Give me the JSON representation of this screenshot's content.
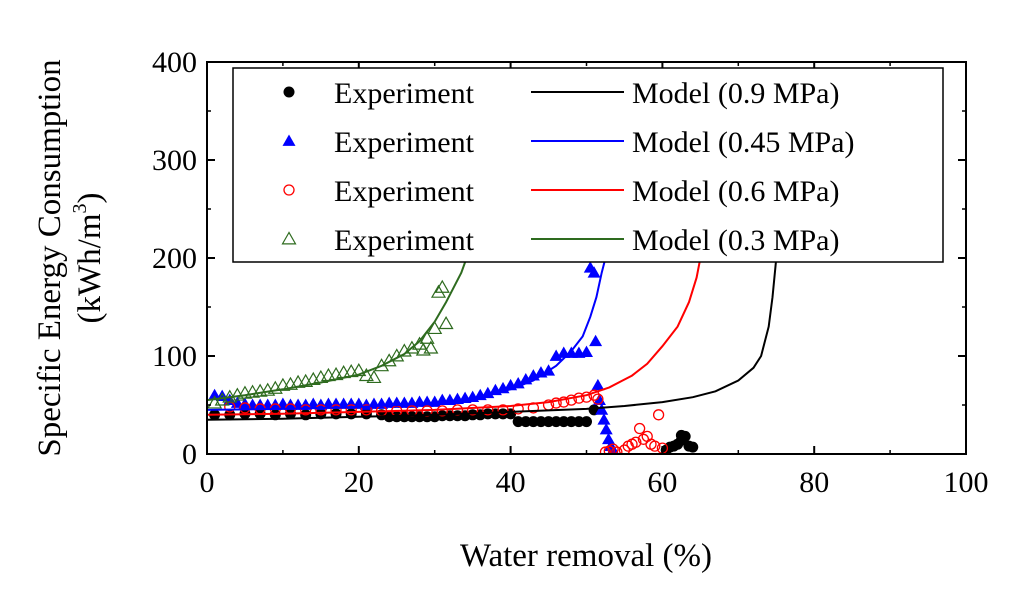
{
  "chart_data": {
    "type": "scatter",
    "xlabel": "Water removal (%)",
    "ylabel_line1": "Specific Energy Consumption",
    "ylabel_line2_base": "(kWh/m",
    "ylabel_line2_sup": "3",
    "ylabel_line2_close": ")",
    "xlim": [
      0,
      100
    ],
    "ylim": [
      0,
      400
    ],
    "xticks": [
      "0",
      "20",
      "40",
      "60",
      "80",
      "100"
    ],
    "yticks": [
      "0",
      "100",
      "200",
      "300",
      "400"
    ],
    "grid": false,
    "legend_position": "top-right",
    "colors": {
      "p09": "#000000",
      "p045": "#0000ff",
      "p06": "#ff0000",
      "p03": "#2e6b1f"
    },
    "series": [
      {
        "experiment_label": "Experiment",
        "model_label": "Model (0.9 MPa)",
        "marker": "filled-circle",
        "color_key": "p09",
        "experiment": [
          [
            1,
            40
          ],
          [
            3,
            40
          ],
          [
            5,
            41
          ],
          [
            7,
            41
          ],
          [
            9,
            40
          ],
          [
            11,
            41
          ],
          [
            13,
            40
          ],
          [
            15,
            41
          ],
          [
            17,
            41
          ],
          [
            19,
            41
          ],
          [
            21,
            41
          ],
          [
            23,
            40
          ],
          [
            24,
            38
          ],
          [
            25,
            38
          ],
          [
            26,
            38
          ],
          [
            27,
            38
          ],
          [
            28,
            38
          ],
          [
            29,
            38
          ],
          [
            30,
            38
          ],
          [
            31,
            39
          ],
          [
            32,
            39
          ],
          [
            33,
            39
          ],
          [
            34,
            39
          ],
          [
            35,
            40
          ],
          [
            36,
            40
          ],
          [
            37,
            41
          ],
          [
            38,
            41
          ],
          [
            39,
            41
          ],
          [
            40,
            41
          ],
          [
            41,
            33
          ],
          [
            42,
            33
          ],
          [
            43,
            33
          ],
          [
            44,
            33
          ],
          [
            45,
            33
          ],
          [
            46,
            33
          ],
          [
            47,
            33
          ],
          [
            48,
            33
          ],
          [
            49,
            33
          ],
          [
            50,
            33
          ],
          [
            51,
            45
          ],
          [
            60.5,
            4
          ],
          [
            61,
            7
          ],
          [
            61.5,
            8
          ],
          [
            62,
            10
          ],
          [
            62.5,
            14
          ],
          [
            63,
            18
          ],
          [
            63.5,
            8
          ],
          [
            64,
            7
          ],
          [
            62.5,
            19
          ]
        ],
        "model": [
          [
            0,
            35
          ],
          [
            10,
            36
          ],
          [
            20,
            38
          ],
          [
            30,
            40
          ],
          [
            40,
            43
          ],
          [
            50,
            46
          ],
          [
            55,
            49
          ],
          [
            60,
            53
          ],
          [
            64,
            58
          ],
          [
            67,
            64
          ],
          [
            70,
            75
          ],
          [
            72,
            88
          ],
          [
            73,
            100
          ],
          [
            74,
            130
          ],
          [
            74.5,
            160
          ],
          [
            75,
            200
          ]
        ]
      },
      {
        "experiment_label": "Experiment",
        "model_label": "Model (0.45 MPa)",
        "marker": "filled-triangle",
        "color_key": "p045",
        "experiment": [
          [
            1,
            60
          ],
          [
            2,
            59
          ],
          [
            3,
            55
          ],
          [
            4,
            52
          ],
          [
            5,
            51
          ],
          [
            6,
            50
          ],
          [
            7,
            50
          ],
          [
            8,
            50
          ],
          [
            9,
            50
          ],
          [
            10,
            51
          ],
          [
            11,
            50
          ],
          [
            12,
            50
          ],
          [
            13,
            50
          ],
          [
            14,
            51
          ],
          [
            15,
            50
          ],
          [
            16,
            51
          ],
          [
            17,
            51
          ],
          [
            18,
            51
          ],
          [
            19,
            51
          ],
          [
            20,
            51
          ],
          [
            21,
            50
          ],
          [
            22,
            51
          ],
          [
            23,
            51
          ],
          [
            24,
            52
          ],
          [
            25,
            52
          ],
          [
            26,
            52
          ],
          [
            27,
            52
          ],
          [
            28,
            53
          ],
          [
            29,
            53
          ],
          [
            30,
            53
          ],
          [
            31,
            55
          ],
          [
            32,
            55
          ],
          [
            33,
            56
          ],
          [
            34,
            57
          ],
          [
            35,
            58
          ],
          [
            36,
            60
          ],
          [
            37,
            62
          ],
          [
            38,
            65
          ],
          [
            39,
            67
          ],
          [
            40,
            70
          ],
          [
            41,
            72
          ],
          [
            42,
            76
          ],
          [
            43,
            80
          ],
          [
            44,
            83
          ],
          [
            45,
            85
          ],
          [
            46,
            100
          ],
          [
            47,
            103
          ],
          [
            48,
            103
          ],
          [
            49,
            103
          ],
          [
            50,
            104
          ],
          [
            50.5,
            190
          ],
          [
            51,
            185
          ],
          [
            51.2,
            115
          ],
          [
            51.5,
            70
          ],
          [
            51.7,
            55
          ],
          [
            52,
            45
          ],
          [
            52.3,
            35
          ],
          [
            52.6,
            25
          ],
          [
            52.9,
            15
          ],
          [
            53.2,
            8
          ],
          [
            53.5,
            4
          ]
        ],
        "model": [
          [
            0,
            45
          ],
          [
            10,
            46
          ],
          [
            20,
            48
          ],
          [
            30,
            52
          ],
          [
            36,
            58
          ],
          [
            40,
            66
          ],
          [
            43,
            75
          ],
          [
            46,
            90
          ],
          [
            48,
            105
          ],
          [
            49.5,
            120
          ],
          [
            50.5,
            140
          ],
          [
            51.3,
            160
          ],
          [
            52,
            185
          ],
          [
            52.5,
            200
          ]
        ]
      },
      {
        "experiment_label": "Experiment",
        "model_label": "Model (0.6 MPa)",
        "marker": "open-circle",
        "color_key": "p06",
        "experiment": [
          [
            3,
            48
          ],
          [
            5,
            47
          ],
          [
            7,
            46
          ],
          [
            9,
            46
          ],
          [
            11,
            46
          ],
          [
            13,
            45
          ],
          [
            15,
            45
          ],
          [
            17,
            45
          ],
          [
            19,
            45
          ],
          [
            21,
            45
          ],
          [
            23,
            44
          ],
          [
            25,
            44
          ],
          [
            27,
            44
          ],
          [
            29,
            44
          ],
          [
            31,
            44
          ],
          [
            33,
            45
          ],
          [
            35,
            45
          ],
          [
            37,
            45
          ],
          [
            39,
            45
          ],
          [
            41,
            46
          ],
          [
            43,
            47
          ],
          [
            45,
            50
          ],
          [
            46,
            52
          ],
          [
            47,
            53
          ],
          [
            48,
            55
          ],
          [
            49,
            57
          ],
          [
            50,
            58
          ],
          [
            51,
            60
          ],
          [
            51.5,
            56
          ],
          [
            52.5,
            2
          ],
          [
            53,
            3
          ],
          [
            53.5,
            5
          ],
          [
            54,
            2
          ],
          [
            55,
            4
          ],
          [
            55.5,
            8
          ],
          [
            56,
            10
          ],
          [
            56.5,
            12
          ],
          [
            57,
            26
          ],
          [
            57.5,
            15
          ],
          [
            58,
            18
          ],
          [
            58.5,
            10
          ],
          [
            59,
            8
          ],
          [
            59.5,
            40
          ],
          [
            60,
            6
          ]
        ],
        "model": [
          [
            0,
            40
          ],
          [
            10,
            41
          ],
          [
            20,
            43
          ],
          [
            30,
            45
          ],
          [
            40,
            49
          ],
          [
            45,
            53
          ],
          [
            50,
            60
          ],
          [
            53,
            68
          ],
          [
            56,
            80
          ],
          [
            58,
            92
          ],
          [
            60,
            110
          ],
          [
            62,
            130
          ],
          [
            63.5,
            155
          ],
          [
            64.5,
            180
          ],
          [
            65,
            200
          ]
        ]
      },
      {
        "experiment_label": "Experiment",
        "model_label": "Model (0.3 MPa)",
        "marker": "open-triangle",
        "color_key": "p03",
        "experiment": [
          [
            1,
            52
          ],
          [
            2,
            55
          ],
          [
            3,
            58
          ],
          [
            4,
            60
          ],
          [
            5,
            62
          ],
          [
            6,
            63
          ],
          [
            7,
            64
          ],
          [
            8,
            65
          ],
          [
            9,
            67
          ],
          [
            10,
            70
          ],
          [
            11,
            71
          ],
          [
            12,
            73
          ],
          [
            13,
            74
          ],
          [
            14,
            76
          ],
          [
            15,
            78
          ],
          [
            16,
            80
          ],
          [
            17,
            81
          ],
          [
            18,
            83
          ],
          [
            19,
            84
          ],
          [
            20,
            85
          ],
          [
            21,
            80
          ],
          [
            22,
            78
          ],
          [
            23,
            90
          ],
          [
            24,
            95
          ],
          [
            25,
            100
          ],
          [
            26,
            105
          ],
          [
            27,
            108
          ],
          [
            28,
            112
          ],
          [
            29,
            118
          ],
          [
            30,
            128
          ],
          [
            30.5,
            165
          ],
          [
            31,
            170
          ],
          [
            29.5,
            108
          ],
          [
            31.5,
            133
          ],
          [
            28.5,
            106
          ]
        ],
        "model": [
          [
            0,
            55
          ],
          [
            5,
            60
          ],
          [
            10,
            66
          ],
          [
            15,
            73
          ],
          [
            20,
            81
          ],
          [
            23,
            90
          ],
          [
            26,
            102
          ],
          [
            28,
            115
          ],
          [
            30,
            135
          ],
          [
            31.5,
            155
          ],
          [
            32.5,
            170
          ],
          [
            33.5,
            185
          ],
          [
            34.2,
            200
          ]
        ]
      }
    ]
  }
}
